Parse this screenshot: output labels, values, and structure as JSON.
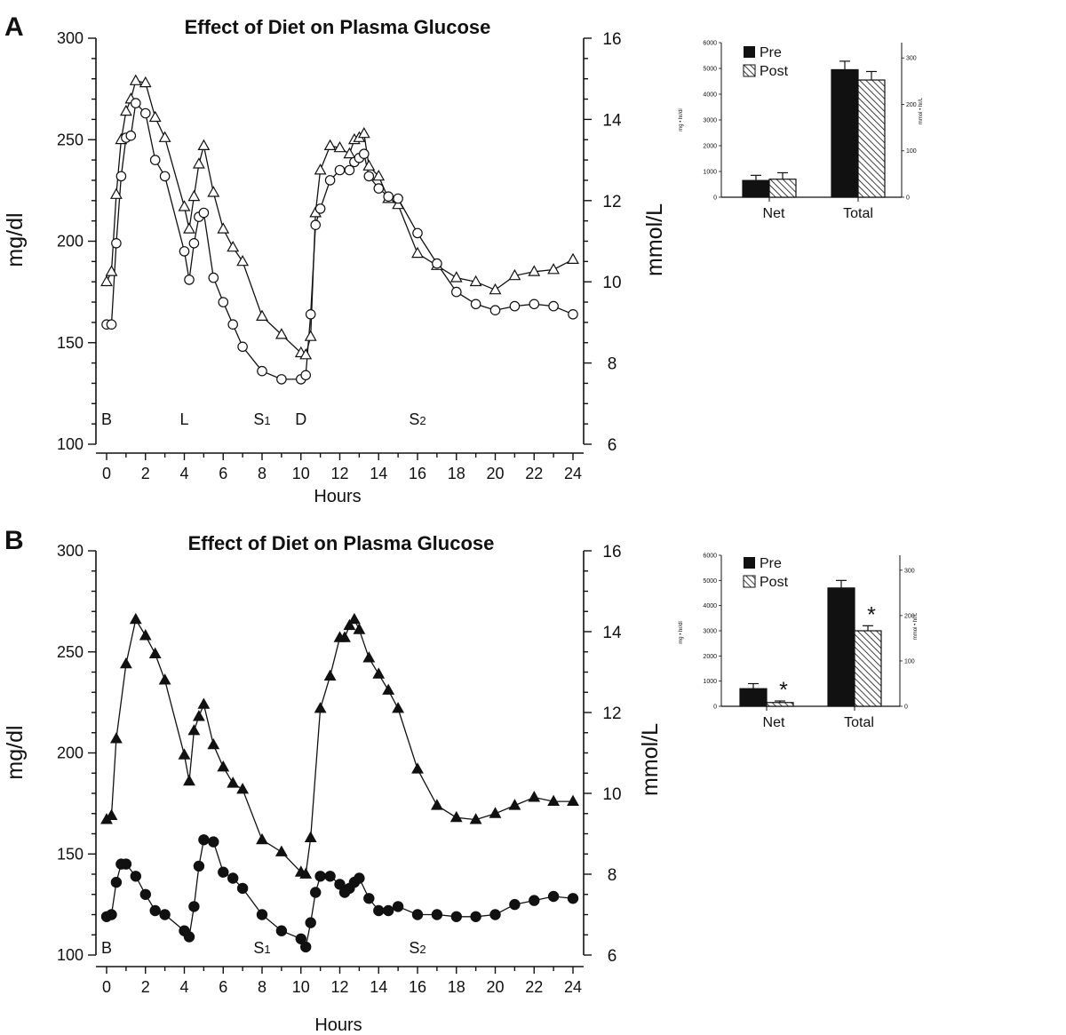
{
  "chart_data": [
    {
      "panel": "A",
      "type": "line",
      "title": "Effect of Diet on Plasma Glucose",
      "xlabel": "Hours",
      "ylabel": "mg/dl",
      "y2label": "mmol/L",
      "xlim": [
        0,
        24
      ],
      "ylim": [
        100,
        300
      ],
      "y2lim": [
        6,
        16
      ],
      "x_ticks": [
        "0",
        "2",
        "4",
        "6",
        "8",
        "10",
        "12",
        "14",
        "16",
        "18",
        "20",
        "22",
        "24"
      ],
      "y_ticks": [
        "100",
        "150",
        "200",
        "250",
        "300"
      ],
      "y2_ticks": [
        "6",
        "8",
        "10",
        "12",
        "14",
        "16"
      ],
      "events": [
        {
          "label": "B",
          "x": 0
        },
        {
          "label": "L",
          "x": 4
        },
        {
          "label": "S",
          "sub": "1",
          "x": 8
        },
        {
          "label": "D",
          "x": 10
        },
        {
          "label": "S",
          "sub": "2",
          "x": 16
        }
      ],
      "series": [
        {
          "marker": "open-triangle",
          "x": [
            0,
            0.25,
            0.5,
            0.75,
            1,
            1.25,
            1.5,
            2,
            2.5,
            3,
            4,
            4.25,
            4.5,
            4.75,
            5,
            5.5,
            6,
            6.5,
            7,
            8,
            9,
            10,
            10.25,
            10.5,
            10.75,
            11,
            11.5,
            12,
            12.5,
            12.75,
            13,
            13.25,
            13.5,
            14,
            14.5,
            15,
            16,
            17,
            18,
            19,
            20,
            21,
            22,
            23,
            24
          ],
          "y": [
            180,
            185,
            223,
            250,
            264,
            270,
            279,
            278,
            261,
            251,
            217,
            206,
            222,
            238,
            247,
            224,
            206,
            197,
            190,
            163,
            154,
            145,
            144,
            153,
            214,
            235,
            247,
            246,
            243,
            250,
            251,
            253,
            237,
            232,
            221,
            218,
            194,
            188,
            182,
            180,
            176,
            183,
            185,
            186,
            191
          ]
        },
        {
          "marker": "open-circle",
          "x": [
            0,
            0.25,
            0.5,
            0.75,
            1,
            1.25,
            1.5,
            2,
            2.5,
            3,
            4,
            4.25,
            4.5,
            4.75,
            5,
            5.5,
            6,
            6.5,
            7,
            8,
            9,
            10,
            10.25,
            10.5,
            10.75,
            11,
            11.5,
            12,
            12.5,
            12.75,
            13,
            13.25,
            13.5,
            14,
            14.5,
            15,
            16,
            17,
            18,
            19,
            20,
            21,
            22,
            23,
            24
          ],
          "y": [
            159,
            159,
            199,
            232,
            251,
            252,
            268,
            263,
            240,
            232,
            195,
            181,
            199,
            212,
            214,
            182,
            170,
            159,
            148,
            136,
            132,
            132,
            134,
            164,
            208,
            216,
            230,
            235,
            235,
            239,
            241,
            243,
            232,
            226,
            222,
            221,
            204,
            189,
            175,
            169,
            166,
            168,
            169,
            168,
            164
          ]
        }
      ],
      "inset": {
        "type": "bar",
        "categories": [
          "Net",
          "Total"
        ],
        "ylabel": "mg • hr/dl",
        "y2label": "mmol • hr/L",
        "ylim": [
          0,
          6000
        ],
        "y2lim": [
          0,
          333
        ],
        "y_ticks": [
          "0",
          "1000",
          "2000",
          "3000",
          "4000",
          "5000",
          "6000"
        ],
        "y2_ticks": [
          "0",
          "100",
          "200",
          "300"
        ],
        "legend": [
          "Pre",
          "Post"
        ],
        "series": [
          {
            "name": "Pre",
            "values": [
              650,
              4950
            ],
            "errors": [
              200,
              330
            ]
          },
          {
            "name": "Post",
            "values": [
              700,
              4550
            ],
            "errors": [
              250,
              330
            ]
          }
        ],
        "significant": [
          [
            false,
            false
          ],
          [
            false,
            false
          ]
        ]
      }
    },
    {
      "panel": "B",
      "type": "line",
      "title": "Effect of Diet on Plasma Glucose",
      "xlabel": "Hours",
      "ylabel": "mg/dl",
      "y2label": "mmol/L",
      "xlim": [
        0,
        24
      ],
      "ylim": [
        100,
        300
      ],
      "y2lim": [
        6,
        16
      ],
      "x_ticks": [
        "0",
        "2",
        "4",
        "6",
        "8",
        "10",
        "12",
        "14",
        "16",
        "18",
        "20",
        "22",
        "24"
      ],
      "y_ticks": [
        "100",
        "150",
        "200",
        "250",
        "300"
      ],
      "y2_ticks": [
        "6",
        "8",
        "10",
        "12",
        "14",
        "16"
      ],
      "events": [
        {
          "label": "B",
          "x": 0
        },
        {
          "label": "S",
          "sub": "1",
          "x": 8
        },
        {
          "label": "S",
          "sub": "2",
          "x": 16
        }
      ],
      "series": [
        {
          "marker": "filled-triangle",
          "x": [
            0,
            0.25,
            0.5,
            1,
            1.5,
            2,
            2.5,
            3,
            4,
            4.25,
            4.5,
            4.75,
            5,
            5.5,
            6,
            6.5,
            7,
            8,
            9,
            10,
            10.25,
            10.5,
            11,
            11.5,
            12,
            12.25,
            12.5,
            12.75,
            13,
            13.5,
            14,
            14.5,
            15,
            16,
            17,
            18,
            19,
            20,
            21,
            22,
            23,
            24
          ],
          "y": [
            167,
            169,
            207,
            244,
            266,
            258,
            249,
            236,
            199,
            186,
            211,
            218,
            224,
            204,
            193,
            185,
            182,
            157,
            151,
            141,
            140,
            158,
            222,
            238,
            257,
            257,
            263,
            266,
            261,
            247,
            239,
            231,
            222,
            192,
            174,
            168,
            167,
            170,
            174,
            178,
            176,
            176
          ]
        },
        {
          "marker": "filled-circle",
          "x": [
            0,
            0.25,
            0.5,
            0.75,
            1,
            1.5,
            2,
            2.5,
            3,
            4,
            4.25,
            4.5,
            4.75,
            5,
            5.5,
            6,
            6.5,
            7,
            8,
            9,
            10,
            10.25,
            10.5,
            10.75,
            11,
            11.5,
            12,
            12.25,
            12.5,
            12.75,
            13,
            13.5,
            14,
            14.5,
            15,
            16,
            17,
            18,
            19,
            20,
            21,
            22,
            23,
            24
          ],
          "y": [
            119,
            120,
            136,
            145,
            145,
            139,
            130,
            122,
            120,
            112,
            109,
            124,
            144,
            157,
            156,
            141,
            138,
            133,
            120,
            112,
            108,
            104,
            116,
            131,
            139,
            139,
            135,
            131,
            133,
            136,
            138,
            128,
            122,
            122,
            124,
            120,
            120,
            119,
            119,
            120,
            125,
            127,
            129,
            128
          ]
        }
      ],
      "inset": {
        "type": "bar",
        "categories": [
          "Net",
          "Total"
        ],
        "ylabel": "mg • hr/dl",
        "y2label": "mmol • hr/L",
        "ylim": [
          0,
          6000
        ],
        "y2lim": [
          0,
          333
        ],
        "y_ticks": [
          "0",
          "1000",
          "2000",
          "3000",
          "4000",
          "5000",
          "6000"
        ],
        "y2_ticks": [
          "0",
          "100",
          "200",
          "300"
        ],
        "legend": [
          "Pre",
          "Post"
        ],
        "series": [
          {
            "name": "Pre",
            "values": [
              700,
              4700
            ],
            "errors": [
              200,
              300
            ]
          },
          {
            "name": "Post",
            "values": [
              150,
              3000
            ],
            "errors": [
              60,
              200
            ]
          }
        ],
        "significant": [
          [
            false,
            false
          ],
          [
            true,
            true
          ]
        ],
        "significance_mark": "*"
      }
    }
  ]
}
